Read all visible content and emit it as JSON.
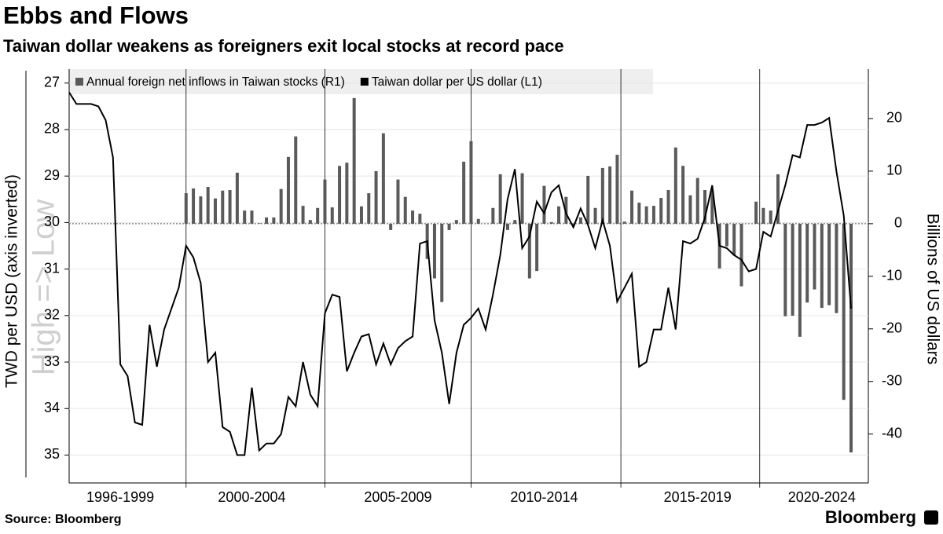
{
  "chart_data": {
    "type": "bar_line",
    "title": "Ebbs and Flows",
    "subtitle": "Taiwan dollar weakens as foreigners exit local stocks at record pace",
    "ylabel": "TWD per USD (axis inverted)",
    "y2label": "Billions of US dollars",
    "annotation": "High => Low",
    "source": "Source: Bloomberg",
    "brand": "Bloomberg",
    "categories": [
      null,
      null,
      null,
      null,
      null,
      null,
      null,
      "1996-1999",
      null,
      null,
      null,
      null,
      null,
      null,
      null,
      null,
      null,
      null,
      null,
      null,
      null,
      null,
      null,
      null,
      null,
      "2000-2004",
      null,
      null,
      null,
      null,
      null,
      null,
      null,
      null,
      null,
      null,
      null,
      null,
      null,
      null,
      null,
      null,
      null,
      null,
      null,
      "2005-2009",
      null,
      null,
      null,
      null,
      null,
      null,
      null,
      null,
      null,
      null,
      null,
      null,
      null,
      null,
      null,
      null,
      null,
      null,
      null,
      "2010-2014",
      null,
      null,
      null,
      null,
      null,
      null,
      null,
      null,
      null,
      null,
      null,
      null,
      null,
      null,
      null,
      null,
      null,
      null,
      null,
      null,
      "2015-2019",
      null,
      null,
      null,
      null,
      null,
      null,
      null,
      null,
      null,
      null,
      null,
      null,
      null,
      null,
      null,
      null,
      "2020-2024",
      null,
      null,
      null,
      null
    ],
    "ylim": [
      26.7,
      35.6
    ],
    "y_inverted": true,
    "yticks": [
      27,
      28,
      29,
      30,
      31,
      32,
      33,
      34,
      35
    ],
    "y2lim": [
      -49.3,
      29.4
    ],
    "y2ticks": [
      -40,
      -30,
      -20,
      -10,
      0,
      10,
      20
    ],
    "grid": true,
    "series": [
      {
        "name": "Annual foreign net inflows in Taiwan stocks (R1)",
        "color": "#5a5a5a",
        "axis": "y2",
        "type": "bar",
        "values": [
          0,
          0,
          0,
          0,
          0,
          0,
          0,
          0,
          0,
          0,
          0,
          0,
          0,
          0,
          0,
          0,
          5.8,
          6.7,
          5.2,
          7.0,
          4.8,
          6.3,
          6.4,
          9.7,
          2.5,
          2.5,
          0.1,
          1.2,
          1.2,
          6.6,
          12.7,
          16.6,
          3.4,
          0.7,
          3.0,
          8.4,
          3.1,
          11,
          11.6,
          23.9,
          3.3,
          5.8,
          10,
          17.2,
          -1.2,
          8.4,
          5.1,
          2.5,
          1.9,
          -6.7,
          -10.4,
          -14.9,
          -1.2,
          0.7,
          11.8,
          15.7,
          0.9,
          0,
          3.0,
          9.4,
          -1.2,
          0.7,
          9.6,
          -10.4,
          -9.0,
          7.2,
          0.3,
          3.3,
          5.1,
          -0.4,
          1.2,
          9.1,
          3.0,
          10.6,
          10.9,
          13.1,
          0.4,
          6.3,
          4.0,
          3.3,
          3.4,
          4.9,
          6.4,
          14.5,
          11,
          5.4,
          8.7,
          6.4,
          6.3,
          -8.5,
          -4.3,
          -6.0,
          -11.9,
          0,
          4.2,
          3.0,
          2.5,
          9.4,
          -17.6,
          -17.5,
          -21.5,
          -15,
          -12.5,
          -16,
          -15.5,
          -17,
          -33.5,
          -43.5
        ]
      },
      {
        "name": "Taiwan dollar per US dollar (L1)",
        "color": "#000000",
        "axis": "y",
        "type": "line",
        "values": [
          27.2,
          27.45,
          27.45,
          27.45,
          27.5,
          27.8,
          28.6,
          33.05,
          33.3,
          34.3,
          34.35,
          32.2,
          33.1,
          32.3,
          31.85,
          31.4,
          30.5,
          30.75,
          31.3,
          33.0,
          32.8,
          34.4,
          34.5,
          35.0,
          35.0,
          33.55,
          34.9,
          34.75,
          34.75,
          34.55,
          33.75,
          33.95,
          33.0,
          33.7,
          33.95,
          31.95,
          31.55,
          31.6,
          33.2,
          32.8,
          32.45,
          32.4,
          33.05,
          32.6,
          33.05,
          32.7,
          32.55,
          32.45,
          30.45,
          30.4,
          32.1,
          32.8,
          33.9,
          32.8,
          32.2,
          32.05,
          31.85,
          32.3,
          31.55,
          30.7,
          29.5,
          28.85,
          30.55,
          30.3,
          29.55,
          29.8,
          29.35,
          29.2,
          29.8,
          30.1,
          29.7,
          30.05,
          30.55,
          29.95,
          30.5,
          31.7,
          31.4,
          31.1,
          33.1,
          33.0,
          32.3,
          32.3,
          31.4,
          32.3,
          30.4,
          30.45,
          30.35,
          29.9,
          29.2,
          30.5,
          30.55,
          30.7,
          30.8,
          31.05,
          31.0,
          30.2,
          30.3,
          29.75,
          29.2,
          28.55,
          28.6,
          27.9,
          27.9,
          27.85,
          27.75,
          28.9,
          29.85,
          31.85
        ]
      }
    ]
  }
}
